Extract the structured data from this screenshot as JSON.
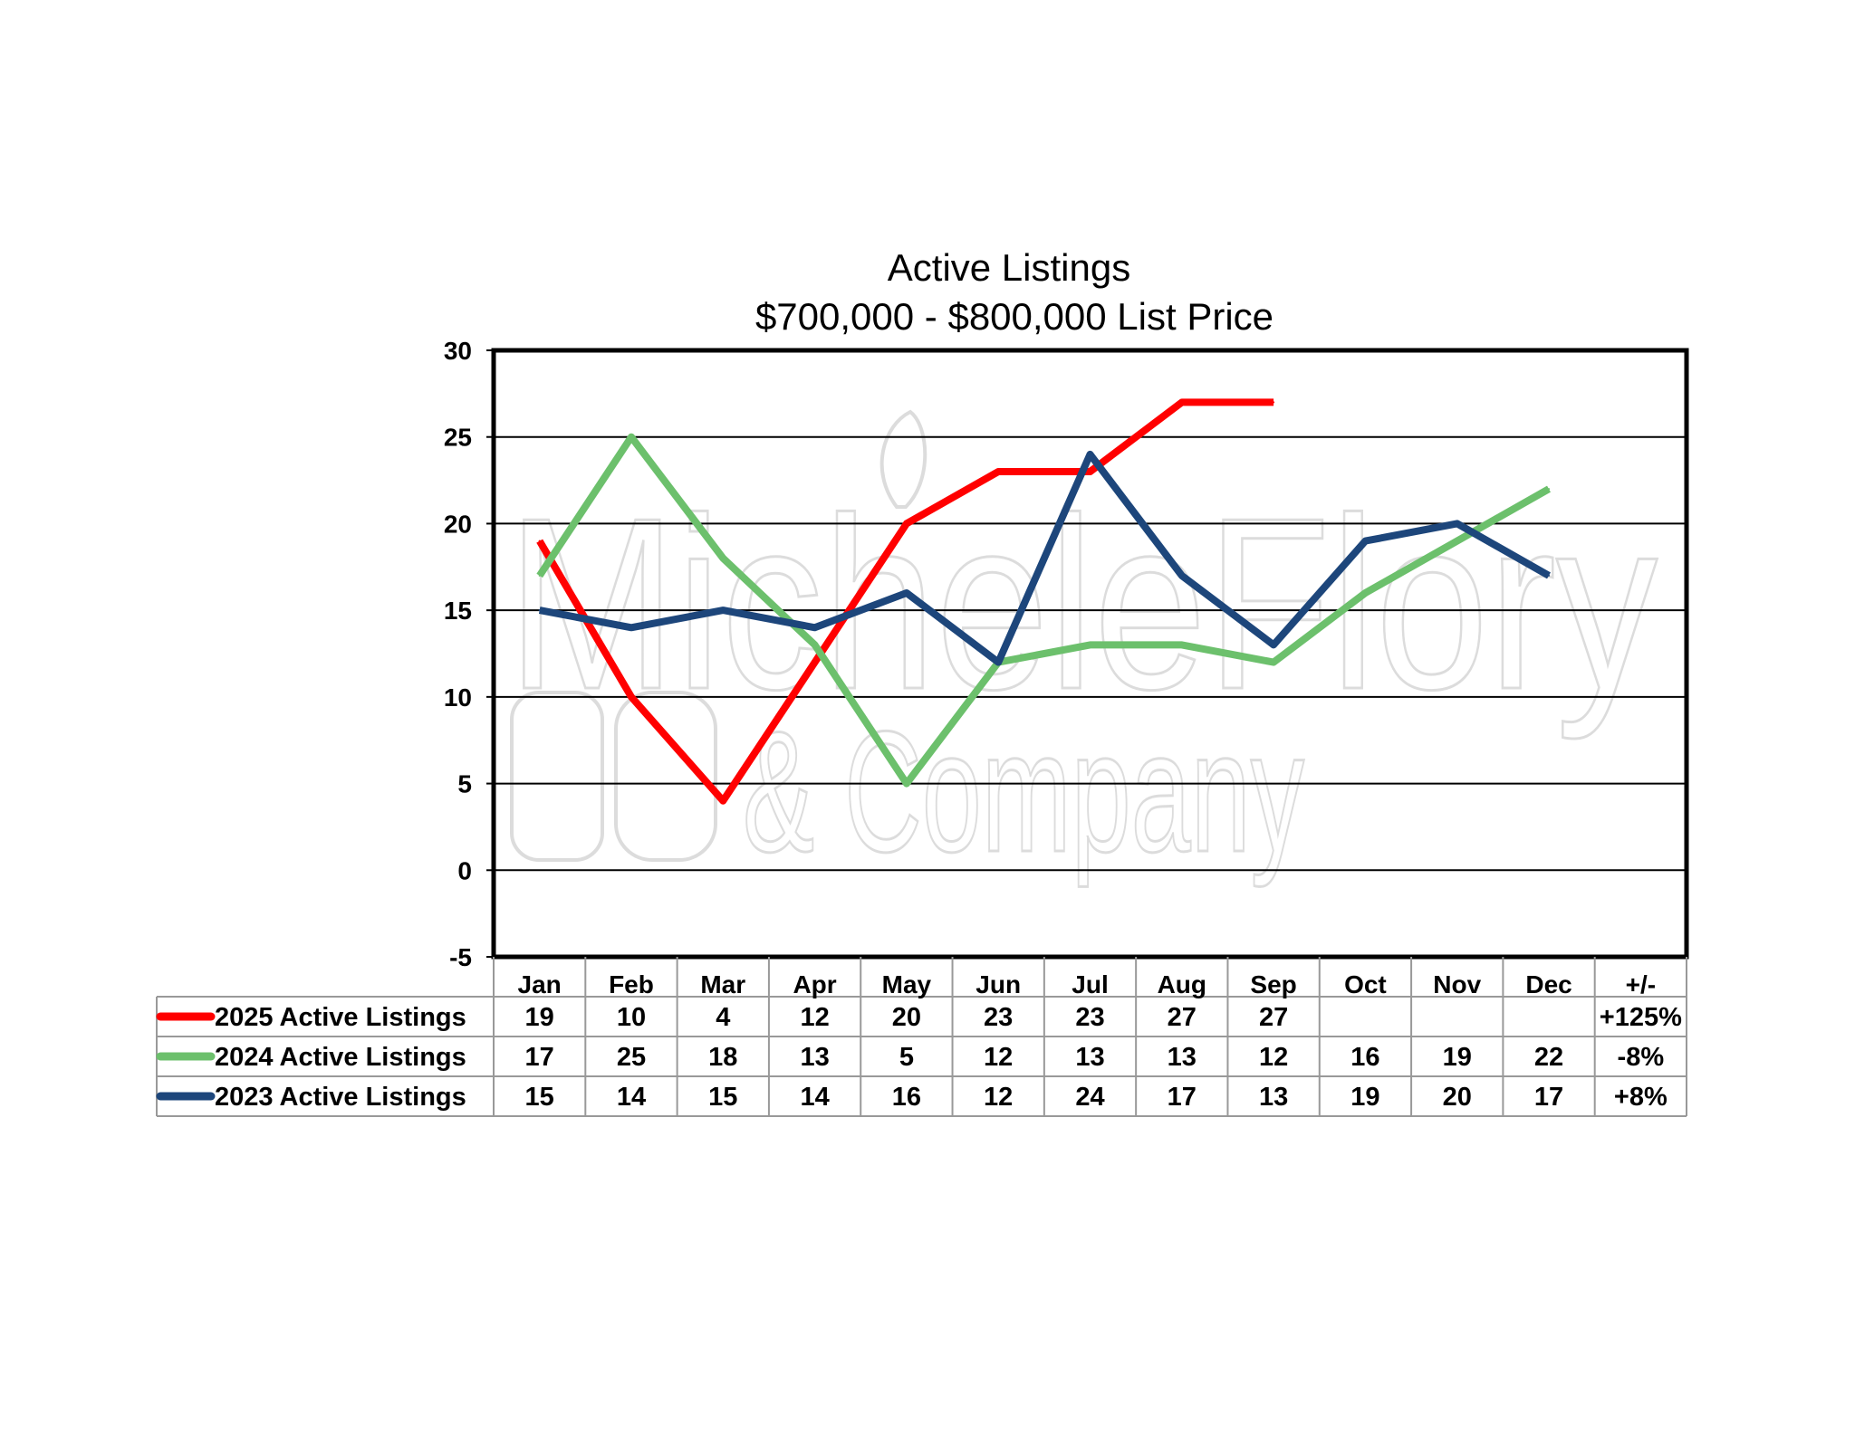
{
  "chart_data": {
    "type": "line",
    "title": "Active Listings",
    "subtitle": "$700,000 - $800,000 List Price",
    "categories": [
      "Jan",
      "Feb",
      "Mar",
      "Apr",
      "May",
      "Jun",
      "Jul",
      "Aug",
      "Sep",
      "Oct",
      "Nov",
      "Dec"
    ],
    "ylim": [
      -5,
      30
    ],
    "yticks": [
      -5,
      0,
      5,
      10,
      15,
      20,
      25,
      30
    ],
    "grid": true,
    "legend_placement": "bottom table",
    "change_header": "+/-",
    "series": [
      {
        "name": "2025 Active Listings",
        "color": "#ff0000",
        "values": [
          19,
          10,
          4,
          12,
          20,
          23,
          23,
          27,
          27,
          null,
          null,
          null
        ],
        "change": "+125%"
      },
      {
        "name": "2024 Active Listings",
        "color": "#6cc06c",
        "values": [
          17,
          25,
          18,
          13,
          5,
          12,
          13,
          13,
          12,
          16,
          19,
          22
        ],
        "change": "-8%"
      },
      {
        "name": "2023 Active Listings",
        "color": "#1d467b",
        "values": [
          15,
          14,
          15,
          14,
          16,
          12,
          24,
          17,
          13,
          19,
          20,
          17
        ],
        "change": "+8%"
      }
    ]
  },
  "watermark": {
    "line1": "MicheleFlory",
    "line2": "& Company"
  }
}
